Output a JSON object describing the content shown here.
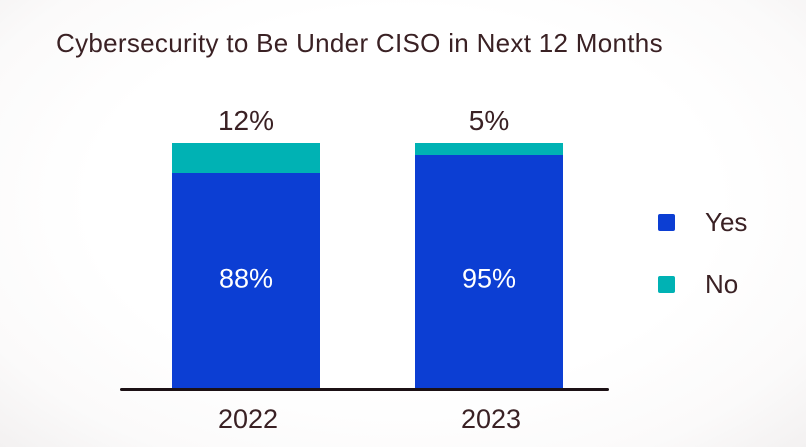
{
  "title": "Cybersecurity to Be Under CISO in Next 12 Months",
  "colors": {
    "yes_blue": "#0C3ED3",
    "no_teal": "#00B2B4",
    "text_dark": "#3A2124",
    "axis_black": "#1C1115",
    "inner_label_white": "#FFFFFF",
    "background": "#FDFCFC"
  },
  "chart_data": {
    "type": "bar",
    "stacked": true,
    "title": "Cybersecurity to Be Under CISO in Next 12 Months",
    "categories": [
      "2022",
      "2023"
    ],
    "series": [
      {
        "name": "Yes",
        "color": "#0C3ED3",
        "values": [
          88,
          95
        ],
        "labels": [
          "88%",
          "95%"
        ]
      },
      {
        "name": "No",
        "color": "#00B2B4",
        "values": [
          12,
          5
        ],
        "labels": [
          "12%",
          "5%"
        ]
      }
    ],
    "xlabel": "",
    "ylabel": "",
    "ylim": [
      0,
      100
    ],
    "grid": false,
    "legend_position": "right",
    "value_label_placement": {
      "Yes": "inside-bottom",
      "No": "above-bar"
    }
  }
}
